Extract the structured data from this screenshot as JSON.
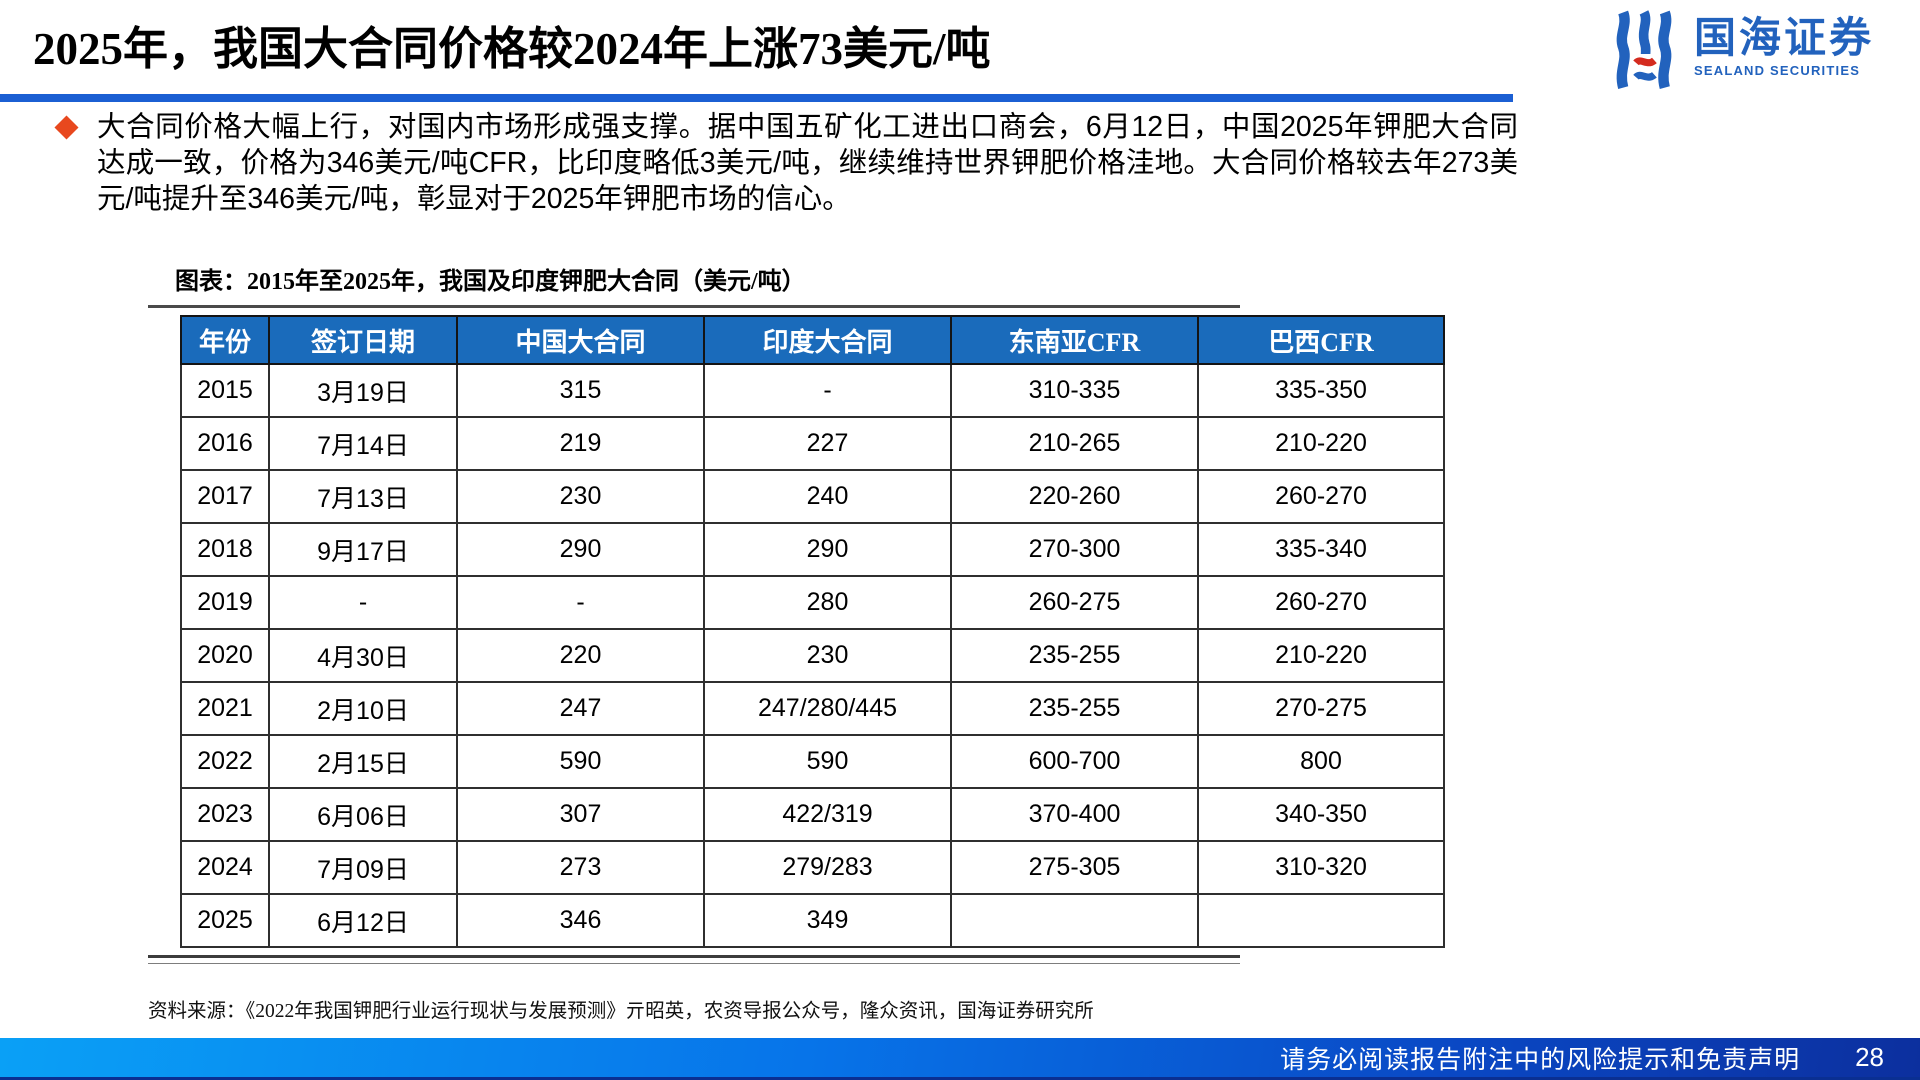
{
  "title": "2025年，我国大合同价格较2024年上涨73美元/吨",
  "logo": {
    "name_cn": "国海证券",
    "name_en": "SEALAND SECURITIES"
  },
  "bullet_paragraph": "大合同价格大幅上行，对国内市场形成强支撑。据中国五矿化工进出口商会，6月12日，中国2025年钾肥大合同达成一致，价格为346美元/吨CFR，比印度略低3美元/吨，继续维持世界钾肥价格洼地。大合同价格较去年273美元/吨提升至346美元/吨，彰显对于2025年钾肥市场的信心。",
  "chart_caption": "图表：2015年至2025年，我国及印度钾肥大合同（美元/吨）",
  "chart_data": {
    "type": "table",
    "columns": [
      "年份",
      "签订日期",
      "中国大合同",
      "印度大合同",
      "东南亚CFR",
      "巴西CFR"
    ],
    "rows": [
      [
        "2015",
        "3月19日",
        "315",
        "-",
        "310-335",
        "335-350"
      ],
      [
        "2016",
        "7月14日",
        "219",
        "227",
        "210-265",
        "210-220"
      ],
      [
        "2017",
        "7月13日",
        "230",
        "240",
        "220-260",
        "260-270"
      ],
      [
        "2018",
        "9月17日",
        "290",
        "290",
        "270-300",
        "335-340"
      ],
      [
        "2019",
        "-",
        "-",
        "280",
        "260-275",
        "260-270"
      ],
      [
        "2020",
        "4月30日",
        "220",
        "230",
        "235-255",
        "210-220"
      ],
      [
        "2021",
        "2月10日",
        "247",
        "247/280/445",
        "235-255",
        "270-275"
      ],
      [
        "2022",
        "2月15日",
        "590",
        "590",
        "600-700",
        "800"
      ],
      [
        "2023",
        "6月06日",
        "307",
        "422/319",
        "370-400",
        "340-350"
      ],
      [
        "2024",
        "7月09日",
        "273",
        "279/283",
        "275-305",
        "310-320"
      ],
      [
        "2025",
        "6月12日",
        "346",
        "349",
        "",
        ""
      ]
    ]
  },
  "source_line": "资料来源：《2022年我国钾肥行业运行现状与发展预测》亓昭英，农资导报公众号，隆众资讯，国海证券研究所",
  "footer": {
    "disclaimer": "请务必阅读报告附注中的风险提示和免责声明",
    "page_number": "28"
  },
  "colors": {
    "title_rule_blue": "#1B5FD3",
    "table_header_blue": "#1A6BBB",
    "logo_blue": "#2262BD",
    "logo_red": "#D42B1F",
    "bullet_orange_red": "#E8481E",
    "footer_gradient_left": "#0AA0F6",
    "footer_gradient_right": "#0C2F9E"
  }
}
